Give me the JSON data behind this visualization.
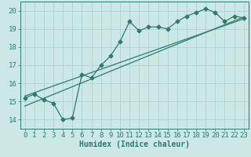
{
  "title": "",
  "xlabel": "Humidex (Indice chaleur)",
  "ylabel": "",
  "bg_color": "#cce8e4",
  "line_color": "#2d7a6e",
  "grid_color": "#aacfcb",
  "xlim": [
    -0.5,
    23.5
  ],
  "ylim": [
    13.5,
    20.5
  ],
  "xticks": [
    0,
    1,
    2,
    3,
    4,
    5,
    6,
    7,
    8,
    9,
    10,
    11,
    12,
    13,
    14,
    15,
    16,
    17,
    18,
    19,
    20,
    21,
    22,
    23
  ],
  "yticks": [
    14,
    15,
    16,
    17,
    18,
    19,
    20
  ],
  "series1_x": [
    0,
    1,
    2,
    3,
    4,
    5,
    6,
    7,
    8,
    9,
    10,
    11,
    12,
    13,
    14,
    15,
    16,
    17,
    18,
    19,
    20,
    21,
    22,
    23
  ],
  "series1_y": [
    15.2,
    15.4,
    15.1,
    14.9,
    14.0,
    14.1,
    16.5,
    16.3,
    17.0,
    17.5,
    18.3,
    19.4,
    18.9,
    19.1,
    19.1,
    19.0,
    19.4,
    19.7,
    19.9,
    20.1,
    19.9,
    19.4,
    19.7,
    19.6
  ],
  "trend1_x": [
    0,
    23
  ],
  "trend1_y": [
    15.3,
    19.55
  ],
  "trend2_x": [
    0,
    23
  ],
  "trend2_y": [
    14.75,
    19.65
  ],
  "marker_size": 2.5,
  "line_width": 0.9,
  "font_size": 7,
  "tick_font_size": 6.5
}
